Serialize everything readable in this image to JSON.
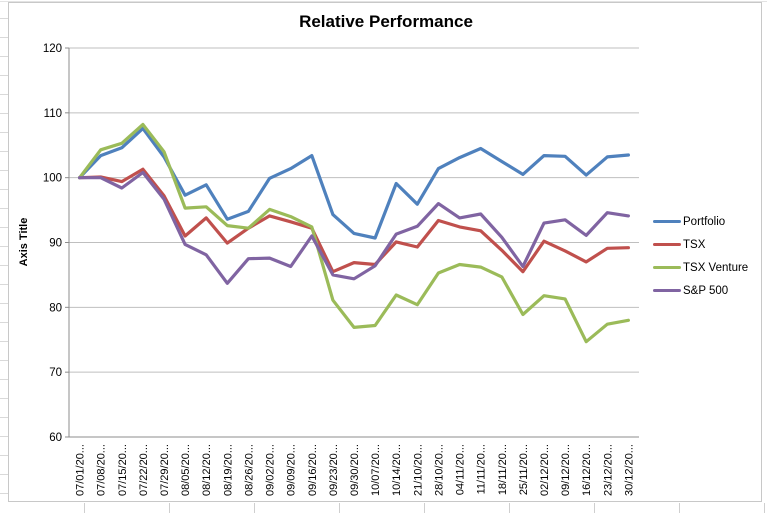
{
  "chart_data": {
    "type": "line",
    "title": "Relative Performance",
    "xlabel": "",
    "ylabel": "Axis Title",
    "ylim": [
      60,
      120
    ],
    "y_ticks": [
      60,
      70,
      80,
      90,
      100,
      110,
      120
    ],
    "grid": "horizontal-only",
    "legend_position": "right",
    "categories": [
      "07/01/20...",
      "07/08/20...",
      "07/15/20...",
      "07/22/20...",
      "07/29/20...",
      "08/05/20...",
      "08/12/20...",
      "08/19/20...",
      "08/26/20...",
      "09/02/20...",
      "09/09/20...",
      "09/16/20...",
      "09/23/20...",
      "09/30/20...",
      "10/07/20...",
      "10/14/20...",
      "21/10/20...",
      "28/10/20...",
      "04/11/20...",
      "11/11/20...",
      "18/11/20...",
      "25/11/20...",
      "02/12/20...",
      "09/12/20...",
      "16/12/20...",
      "23/12/20...",
      "30/12/20..."
    ],
    "series": [
      {
        "name": "Portfolio",
        "color": "#4F81BD",
        "values": [
          100,
          103.4,
          104.6,
          107.6,
          103.2,
          97.3,
          98.9,
          93.6,
          94.8,
          99.9,
          101.4,
          103.4,
          94.3,
          91.4,
          90.7,
          99.1,
          95.9,
          101.4,
          103.1,
          104.5,
          102.5,
          100.5,
          103.4,
          103.3,
          100.4,
          103.2,
          103.5
        ]
      },
      {
        "name": "TSX",
        "color": "#C0504D",
        "values": [
          100,
          100.1,
          99.4,
          101.3,
          97.2,
          91.0,
          93.8,
          89.9,
          92.2,
          94.1,
          93.2,
          92.2,
          85.5,
          86.9,
          86.6,
          90.1,
          89.3,
          93.4,
          92.4,
          91.8,
          88.8,
          85.5,
          90.2,
          88.7,
          87.0,
          89.1,
          89.2
        ]
      },
      {
        "name": "TSX Venture",
        "color": "#9BBB59",
        "values": [
          100,
          104.3,
          105.3,
          108.2,
          104.0,
          95.3,
          95.5,
          92.6,
          92.2,
          95.1,
          94.0,
          92.4,
          81.1,
          76.9,
          77.2,
          81.9,
          80.4,
          85.3,
          86.6,
          86.2,
          84.7,
          78.9,
          81.8,
          81.3,
          74.7,
          77.4,
          78.0
        ]
      },
      {
        "name": "S&P 500",
        "color": "#8064A2",
        "values": [
          100,
          100.0,
          98.4,
          100.8,
          96.7,
          89.7,
          88.1,
          83.7,
          87.5,
          87.6,
          86.3,
          91.0,
          85.0,
          84.4,
          86.4,
          91.3,
          92.5,
          96.0,
          93.8,
          94.4,
          90.8,
          86.3,
          93.0,
          93.5,
          91.1,
          94.6,
          94.1
        ]
      }
    ]
  },
  "colors": {
    "gridline": "#BFBFBF",
    "axis": "#8C8C8C",
    "tick_text": "#000000",
    "chart_border": "#C8C8C8",
    "sheet_gridline": "#D9D9D9",
    "background": "#FFFFFF"
  }
}
